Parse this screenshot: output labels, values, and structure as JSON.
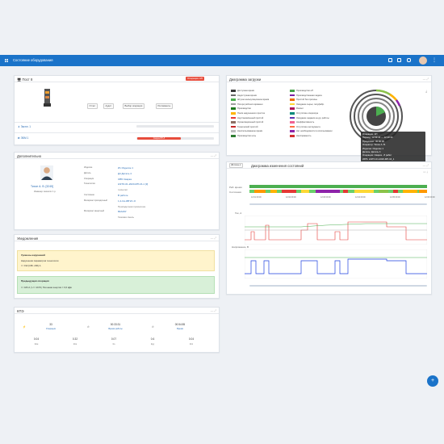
{
  "app": {
    "title": "Состояние оборудования"
  },
  "equipment": {
    "name": "Пост 8",
    "status_badge": "Операция АП",
    "buttons": [
      "Отчет",
      "Аудит",
      "Выбор операции",
      "Регламенты"
    ],
    "line1": "Экспл. 1",
    "line2": "ЭБМ 1",
    "line2_badge": "Сварка ВН-Л"
  },
  "load_chart": {
    "title": "Диаграмма загрузки",
    "legend_left": [
      {
        "label": "Доступная время",
        "color": "#3a3a3a"
      },
      {
        "label": "Недоступная время",
        "color": "#6a6a6a"
      },
      {
        "label": "Штучно-калькуляционное время",
        "color": "#4caf50"
      },
      {
        "label": "Потери рабочего времени",
        "color": "#9e9e9e"
      },
      {
        "label": "Производство",
        "color": "#1e7b1e"
      },
      {
        "label": "Поиск нарушенного простоя",
        "color": "#ffb300"
      },
      {
        "label": "Неустановленный простой",
        "color": "#e53935"
      },
      {
        "label": "Организационный простой",
        "color": "#8d6e63"
      },
      {
        "label": "Технический простой",
        "color": "#c62828"
      },
      {
        "label": "Неиспользованное время",
        "color": "#bdbdbd"
      },
      {
        "label": "Производство ночь",
        "color": "#2e7d32"
      }
    ],
    "legend_right": [
      {
        "label": "Производство нП",
        "color": "#43a047"
      },
      {
        "label": "Производственная задача",
        "color": "#7b1fa2"
      },
      {
        "label": "Простой без причины",
        "color": "#ef6c00"
      },
      {
        "label": "Ожидание сырья, полуфабр.",
        "color": "#fdd835"
      },
      {
        "label": "Ремонт",
        "color": "#ad1457"
      },
      {
        "label": "Отсутствие оператора",
        "color": "#00897b"
      },
      {
        "label": "Ожидание задания на др. работы",
        "color": "#5e35b1"
      },
      {
        "label": "Неэффективность",
        "color": "#f06292"
      },
      {
        "label": "Отсутствие инструмента",
        "color": "#ff7043"
      },
      {
        "label": "Нет необходимости в использовании",
        "color": "#8e24aa"
      },
      {
        "label": "Неисправность",
        "color": "#d32f2f"
      }
    ],
    "tooltip": [
      "Операция: АП",
      "Период: 12:09:44 — 12:10:14",
      "Продолжит: 00:00:30",
      "Оператор: Тихон А. В.",
      "Изделие: Изделие 1",
      "Деталь: Деталь 4",
      "Операция: Сварка - 8 работ",
      "WPS: НЭТО-01-2020-МП-16_1",
      "Присад. мат: 1,2 Св-08Г2С-О",
      "Защит. мат: 80А20У"
    ]
  },
  "details": {
    "title": "Дополнительно",
    "operator_name": "Тихон А. В.",
    "operator_code": "[3245]",
    "operator_role": "Инженер-технолог 1 р.",
    "fields": [
      {
        "label": "Изделие",
        "value": "И1 Изделие 1"
      },
      {
        "label": "Деталь",
        "value": "Д4 Деталь 4"
      },
      {
        "label": "Операция",
        "value": "ОВ5 Сварка"
      },
      {
        "label": "Технология",
        "value": "НЭТО-01-2020-МП-16-1 [3]"
      },
      {
        "label": "",
        "value": "технолог"
      },
      {
        "label": "Состояние",
        "value": "В работе"
      },
      {
        "label": "Материал присадочный",
        "value": "1,2-Св-08Г2С-О"
      },
      {
        "label": "",
        "value": "Присадочная проволока"
      },
      {
        "label": "Материал защитный",
        "value": "80А20У"
      },
      {
        "label": "",
        "value": "Газовая смесь"
      }
    ]
  },
  "state_chart": {
    "title": "Диаграмма изменения состояний",
    "row_labels": [
      "Раб. время",
      "Состояния"
    ],
    "time_ticks": [
      "12:01 09:00",
      "12:02 09:00",
      "12:03 09:00",
      "12:04 09:00",
      "12:05 09:00",
      "12:06 09:00"
    ],
    "current_label": "Ток, А",
    "voltage_label": "Напряжение, В"
  },
  "notifications": {
    "title": "Уведомления",
    "warn_title": "Уровень нарушений",
    "warn_text": "Нарушения параметров технологии",
    "warn_detail": "I = 192 [180..200] А",
    "ok_title": "Предыдущая операция",
    "ok_detail": "I = 183 А  |  U = 20 В  |  Погонная энергия = 0,6 кДж"
  },
  "kpi": {
    "title": "КПЭ",
    "row1": [
      {
        "value": "33",
        "label": "Операции"
      },
      {
        "value": "00:33:31",
        "label": "Время работы"
      },
      {
        "value": "00:54:55",
        "label": "Время"
      }
    ],
    "row2": [
      {
        "value": "0.04",
        "label": "Ксм"
      },
      {
        "value": "0.32",
        "label": "Кпи"
      },
      {
        "value": "0.07",
        "label": "Кэ"
      },
      {
        "value": "0.6",
        "label": "Кду"
      },
      {
        "value": "0.04",
        "label": "Кпп"
      }
    ]
  },
  "icons": [
    "grid-icon",
    "window-icon",
    "monitor-icon",
    "chat-icon",
    "avatar",
    "kebab-icon",
    "plus-icon"
  ]
}
